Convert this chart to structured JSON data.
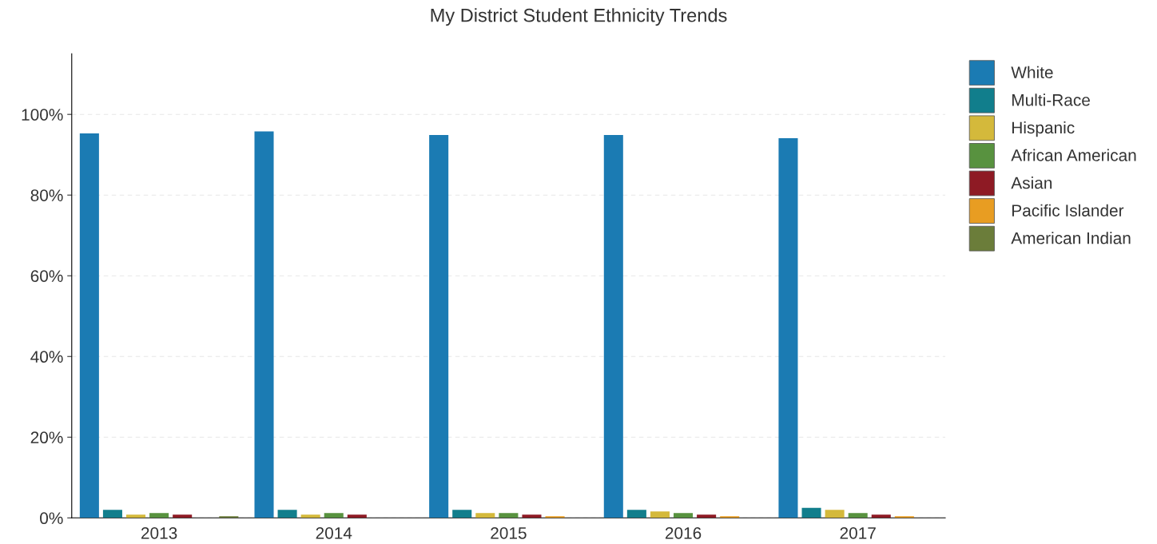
{
  "chart_data": {
    "type": "bar",
    "title": "My District Student Ethnicity Trends",
    "categories": [
      "2013",
      "2014",
      "2015",
      "2016",
      "2017"
    ],
    "series": [
      {
        "name": "White",
        "color": "#1b7bb3",
        "values": [
          95.3,
          95.8,
          94.9,
          94.9,
          94.1
        ]
      },
      {
        "name": "Multi-Race",
        "color": "#117e8c",
        "values": [
          2.0,
          2.0,
          2.0,
          2.0,
          2.5
        ]
      },
      {
        "name": "Hispanic",
        "color": "#d4b93b",
        "values": [
          0.8,
          0.8,
          1.2,
          1.6,
          2.0
        ]
      },
      {
        "name": "African American",
        "color": "#58923f",
        "values": [
          1.2,
          1.2,
          1.2,
          1.2,
          1.2
        ]
      },
      {
        "name": "Asian",
        "color": "#8e1a24",
        "values": [
          0.8,
          0.8,
          0.8,
          0.8,
          0.8
        ]
      },
      {
        "name": "Pacific Islander",
        "color": "#e89d22",
        "values": [
          null,
          null,
          0.4,
          0.4,
          0.4
        ]
      },
      {
        "name": "American Indian",
        "color": "#6b7d3a",
        "values": [
          0.4,
          null,
          null,
          null,
          null
        ]
      }
    ],
    "ylim": [
      0,
      115
    ],
    "yticks": [
      {
        "value": 0,
        "label": "0%"
      },
      {
        "value": 20,
        "label": "20%"
      },
      {
        "value": 40,
        "label": "40%"
      },
      {
        "value": 60,
        "label": "60%"
      },
      {
        "value": 80,
        "label": "80%"
      },
      {
        "value": 100,
        "label": "100%"
      }
    ],
    "grid": "y",
    "legend": "top right"
  }
}
